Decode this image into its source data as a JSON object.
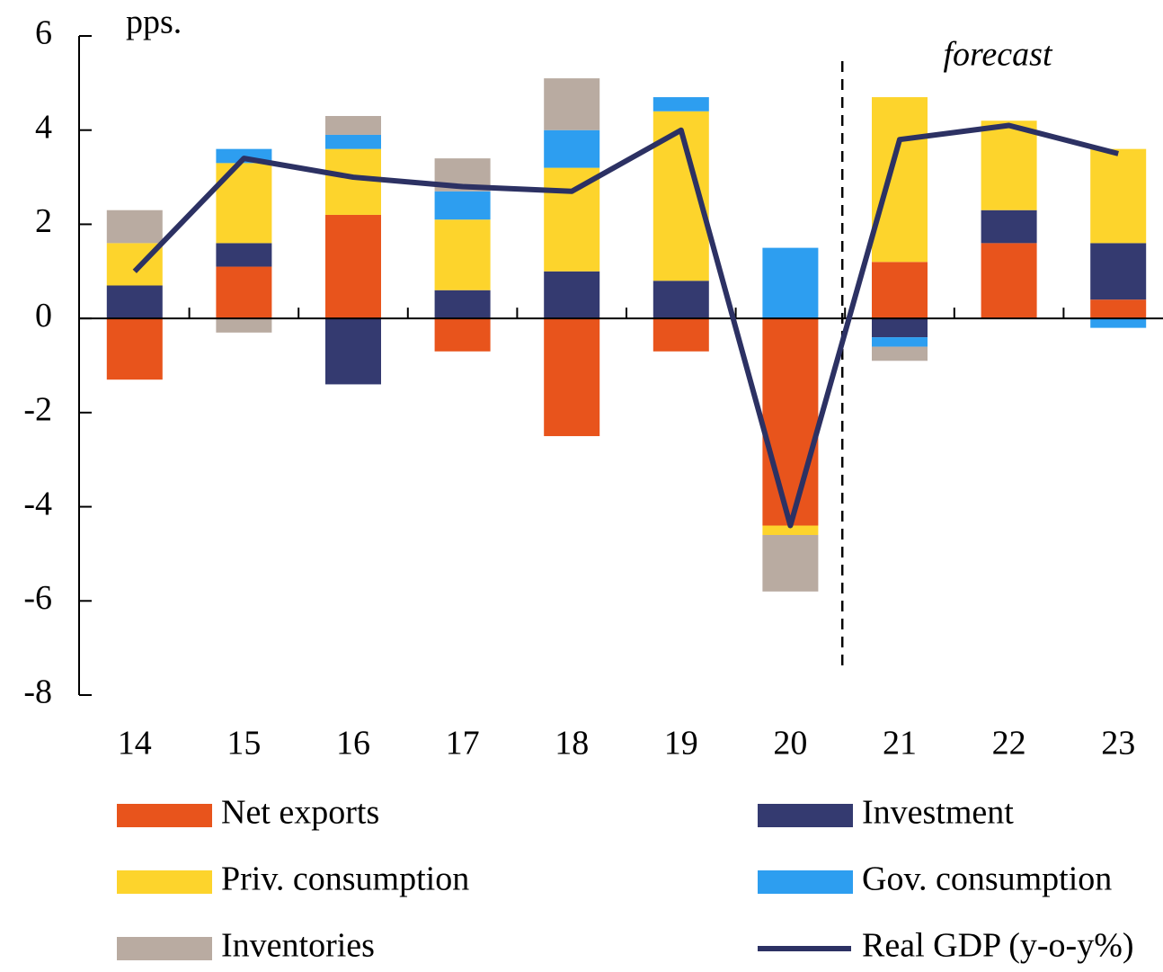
{
  "chart_data": {
    "type": "bar",
    "stacked": true,
    "annotations": [
      "pps.",
      "forecast"
    ],
    "categories": [
      "14",
      "15",
      "16",
      "17",
      "18",
      "19",
      "20",
      "21",
      "22",
      "23"
    ],
    "forecast_from": "21",
    "series": [
      {
        "name": "Net exports",
        "color": "#e8541c",
        "values": [
          -1.3,
          1.1,
          2.2,
          -0.7,
          -2.5,
          -0.7,
          -4.4,
          1.2,
          1.6,
          0.4
        ]
      },
      {
        "name": "Investment",
        "color": "#343a70",
        "values": [
          0.7,
          0.5,
          -1.4,
          0.6,
          1.0,
          0.8,
          0,
          -0.4,
          0.7,
          1.2
        ]
      },
      {
        "name": "Priv. consumption",
        "color": "#fdd42c",
        "values": [
          0.9,
          1.7,
          1.4,
          1.5,
          2.2,
          3.6,
          -0.2,
          3.5,
          1.9,
          2.0
        ]
      },
      {
        "name": "Gov. consumption",
        "color": "#2d9ef0",
        "values": [
          0,
          0.3,
          0.3,
          0.6,
          0.8,
          0.3,
          1.5,
          -0.2,
          0,
          -0.2
        ]
      },
      {
        "name": "Inventories",
        "color": "#b9aba1",
        "values": [
          0.7,
          -0.3,
          0.4,
          0.7,
          1.1,
          0,
          -1.2,
          -0.3,
          0,
          0
        ]
      },
      {
        "name": "Real GDP (y-o-y%)",
        "color": "#2c3163",
        "type": "line",
        "values": [
          1.0,
          3.4,
          3.0,
          2.8,
          2.7,
          4.0,
          -4.4,
          3.8,
          4.1,
          3.5
        ]
      }
    ],
    "ylim": [
      -8,
      6
    ],
    "yticks": [
      -8,
      -6,
      -4,
      -2,
      0,
      2,
      4,
      6
    ]
  }
}
